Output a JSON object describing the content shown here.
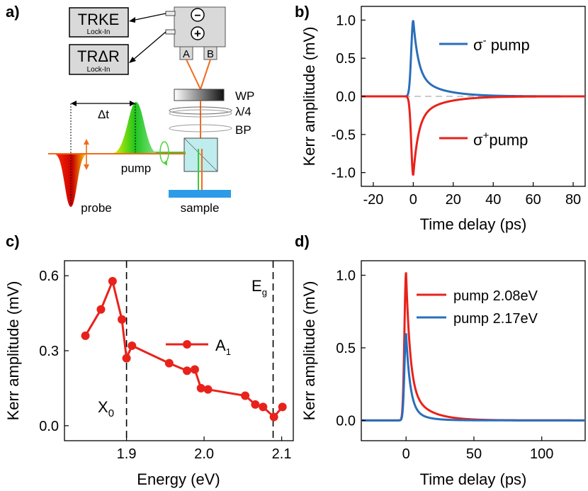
{
  "panels": {
    "a": "a)",
    "b": "b)",
    "c": "c)",
    "d": "d)"
  },
  "setup": {
    "lockin1_title": "TRKE",
    "lockin1_sub": "Lock-In",
    "lockin2_title": "TRΔR",
    "lockin2_sub": "Lock-In",
    "minus_sign": "−",
    "plus_sign": "+",
    "port_a": "A",
    "port_b": "B",
    "wp_label": "WP",
    "qwp_label": "λ/4",
    "bp_label": "BP",
    "delay_label": "Δt",
    "pump_label": "pump",
    "probe_label": "probe",
    "sample_label": "sample"
  },
  "chart_data": [
    {
      "panel": "b",
      "type": "line",
      "xlabel": "Time delay (ps)",
      "ylabel": "Kerr amplitude (mV)",
      "xlim": [
        -26,
        86
      ],
      "ylim": [
        -1.18,
        1.18
      ],
      "xticks": [
        -20,
        0,
        20,
        40,
        60,
        80
      ],
      "xtick_labels": [
        "-20",
        "0",
        "20",
        "40",
        "60",
        "80"
      ],
      "yticks": [
        -1.0,
        -0.5,
        0.0,
        0.5,
        1.0
      ],
      "ytick_labels": [
        "-1.0",
        "-0.5",
        "0.0",
        "0.5",
        "1.0"
      ],
      "baseline": 0,
      "series": [
        {
          "name": "σ⁻ pump",
          "legend_symbol": "σ",
          "legend_sup": "-",
          "legend_text": " pump",
          "color": "#2a6ebb",
          "peak": 1.0,
          "rise": 1.0,
          "tau_fast": 2.5,
          "tau_slow": 12,
          "frac_fast": 0.72
        },
        {
          "name": "σ⁺ pump",
          "legend_symbol": "σ",
          "legend_sup": "+",
          "legend_text": "pump",
          "color": "#e8221b",
          "peak": -1.04,
          "rise": 1.0,
          "tau_fast": 2.5,
          "tau_slow": 12,
          "frac_fast": 0.72
        }
      ]
    },
    {
      "panel": "c",
      "type": "scatter",
      "xlabel": "Energy (eV)",
      "ylabel": "Kerr amplitude (mV)",
      "xlim": [
        1.82,
        2.115
      ],
      "ylim": [
        -0.06,
        0.66
      ],
      "xticks": [
        1.9,
        2.0,
        2.1
      ],
      "xtick_labels": [
        "1.9",
        "2.0",
        "2.1"
      ],
      "yticks": [
        0.0,
        0.3,
        0.6
      ],
      "ytick_labels": [
        "0.0",
        "0.3",
        "0.6"
      ],
      "series": [
        {
          "name": "A",
          "name_sub": "1",
          "color": "#e8221b",
          "x": [
            1.847,
            1.867,
            1.882,
            1.894,
            1.9,
            1.907,
            1.955,
            1.978,
            1.988,
            1.996,
            2.005,
            2.053,
            2.066,
            2.076,
            2.09,
            2.101
          ],
          "y": [
            0.36,
            0.465,
            0.578,
            0.425,
            0.27,
            0.32,
            0.25,
            0.22,
            0.225,
            0.15,
            0.145,
            0.12,
            0.085,
            0.075,
            0.035,
            0.075
          ]
        }
      ],
      "annotations": [
        {
          "x": 1.9,
          "label": "X",
          "sub": "0"
        },
        {
          "x": 2.089,
          "label": "E",
          "sub": "g"
        }
      ]
    },
    {
      "panel": "d",
      "type": "line",
      "xlabel": "Time delay (ps)",
      "ylabel": "Kerr amplitude (mV)",
      "xlim": [
        -33,
        132
      ],
      "ylim": [
        -0.14,
        1.1
      ],
      "xticks": [
        0,
        50,
        100
      ],
      "xtick_labels": [
        "0",
        "50",
        "100"
      ],
      "yticks": [
        0.0,
        0.5,
        1.0
      ],
      "ytick_labels": [
        "0.0",
        "0.5",
        "1.0"
      ],
      "series": [
        {
          "name": "pump 2.08eV",
          "color": "#e8221b",
          "peak": 1.02,
          "rise": 1.2,
          "tau_fast": 3.0,
          "tau_slow": 14,
          "frac_fast": 0.78,
          "offset": 0.0
        },
        {
          "name": "pump 2.17eV",
          "color": "#2a6ebb",
          "peak": 0.6,
          "rise": 1.2,
          "tau_fast": 3.0,
          "tau_slow": 10,
          "frac_fast": 0.85,
          "offset": 0.0
        }
      ]
    }
  ]
}
